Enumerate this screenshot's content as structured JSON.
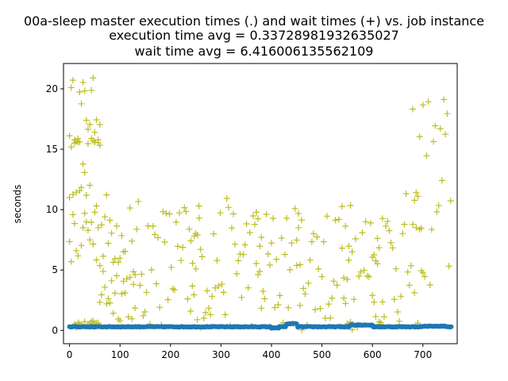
{
  "chart_data": {
    "type": "scatter",
    "title_lines": [
      "00a-sleep master execution times (.) and wait times (+) vs. job instance",
      "execution time avg = 0.33728981932635027",
      "wait time avg = 6.416006135562109"
    ],
    "xlabel": "",
    "ylabel": "seconds",
    "xlim": [
      -12,
      768
    ],
    "ylim": [
      -1.1,
      22.1
    ],
    "x_ticks": [
      0,
      100,
      200,
      300,
      400,
      500,
      600,
      700
    ],
    "y_ticks": [
      0,
      5,
      10,
      15,
      20
    ],
    "grid": false,
    "legend": "none",
    "series": [
      {
        "marker": "dot",
        "color": "#1f77b4",
        "x_range": [
          0,
          756
        ],
        "baseline": 0.3,
        "bumps": [
          {
            "x": [
              400,
              415
            ],
            "y": 0.2
          },
          {
            "x": [
              430,
              450
            ],
            "y": 0.55
          },
          {
            "x": [
              556,
              600
            ],
            "y": 0.45
          },
          {
            "x": [
              700,
              745
            ],
            "y": 0.35
          }
        ]
      },
      {
        "marker": "plus",
        "color": "#bcbd22",
        "bands": [
          {
            "x": [
              0,
              60
            ],
            "y": [
              15.6,
              21.0
            ]
          },
          {
            "x": [
              0,
              60
            ],
            "y": [
              10.0,
              16.0
            ]
          },
          {
            "x": [
              0,
              110
            ],
            "y": [
              5.0,
              11.6
            ]
          },
          {
            "x": [
              10,
              60
            ],
            "y": [
              0.2,
              0.8
            ]
          },
          {
            "x": [
              60,
              130
            ],
            "y": [
              0.7,
              6.0
            ]
          },
          {
            "x": [
              120,
              260
            ],
            "y": [
              0.2,
              10.9
            ]
          },
          {
            "x": [
              240,
              380
            ],
            "y": [
              0.1,
              11.0
            ]
          },
          {
            "x": [
              370,
              460
            ],
            "y": [
              0.0,
              10.4
            ]
          },
          {
            "x": [
              450,
              560
            ],
            "y": [
              0.0,
              10.8
            ]
          },
          {
            "x": [
              540,
              620
            ],
            "y": [
              0.0,
              10.9
            ]
          },
          {
            "x": [
              600,
              700
            ],
            "y": [
              0.2,
              11.5
            ]
          },
          {
            "x": [
              680,
              755
            ],
            "y": [
              2.5,
              20.2
            ]
          }
        ]
      }
    ]
  }
}
